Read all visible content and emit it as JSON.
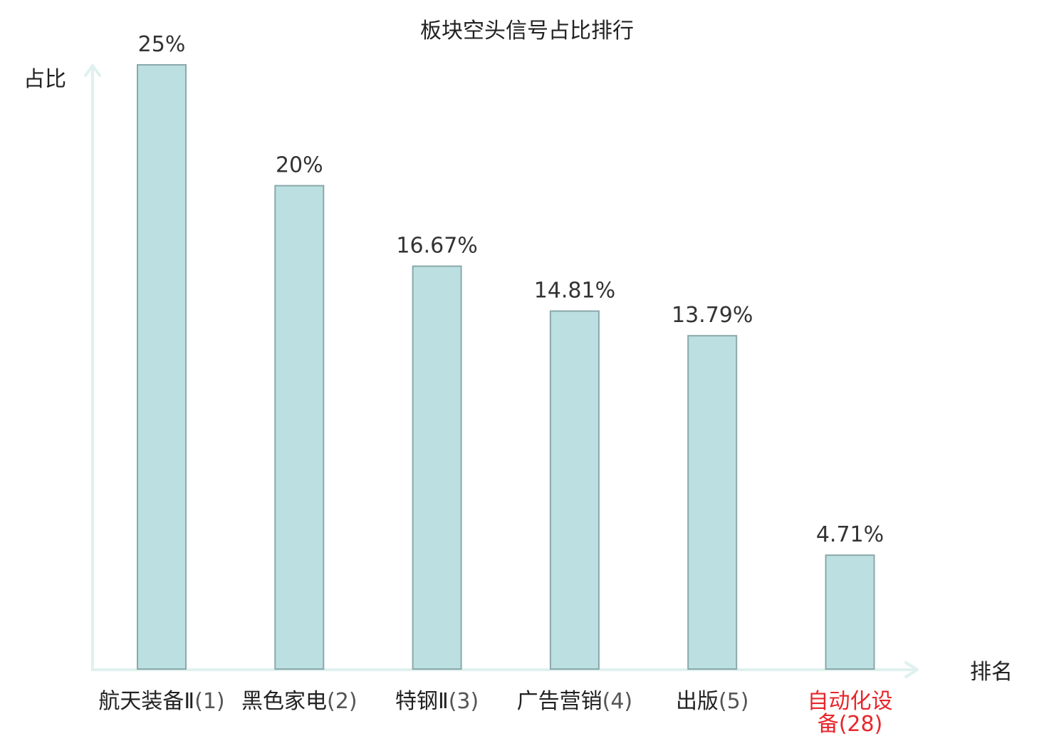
{
  "chart_data": {
    "type": "bar",
    "title": "板块空头信号占比排行",
    "ylabel": "占比",
    "xlabel": "排名",
    "ylim": [
      0,
      25
    ],
    "grid": false,
    "legend": "none",
    "categories": [
      {
        "name": "航天装备Ⅱ",
        "rank": "(1)",
        "highlight": false
      },
      {
        "name": "黑色家电",
        "rank": "(2)",
        "highlight": false
      },
      {
        "name": "特钢Ⅱ",
        "rank": "(3)",
        "highlight": false
      },
      {
        "name": "广告营销",
        "rank": "(4)",
        "highlight": false
      },
      {
        "name": "出版",
        "rank": "(5)",
        "highlight": false
      },
      {
        "name": "自动化设备",
        "rank": "(28)",
        "highlight": true
      }
    ],
    "values": [
      25,
      20,
      16.67,
      14.81,
      13.79,
      4.71
    ],
    "value_labels": [
      "25%",
      "20%",
      "16.67%",
      "14.81%",
      "13.79%",
      "4.71%"
    ],
    "colors": {
      "bar_fill": "#bce0e2",
      "bar_stroke": "#8aa8aa",
      "axis": "#dff1ef",
      "highlight_text": "#e8262b"
    }
  }
}
